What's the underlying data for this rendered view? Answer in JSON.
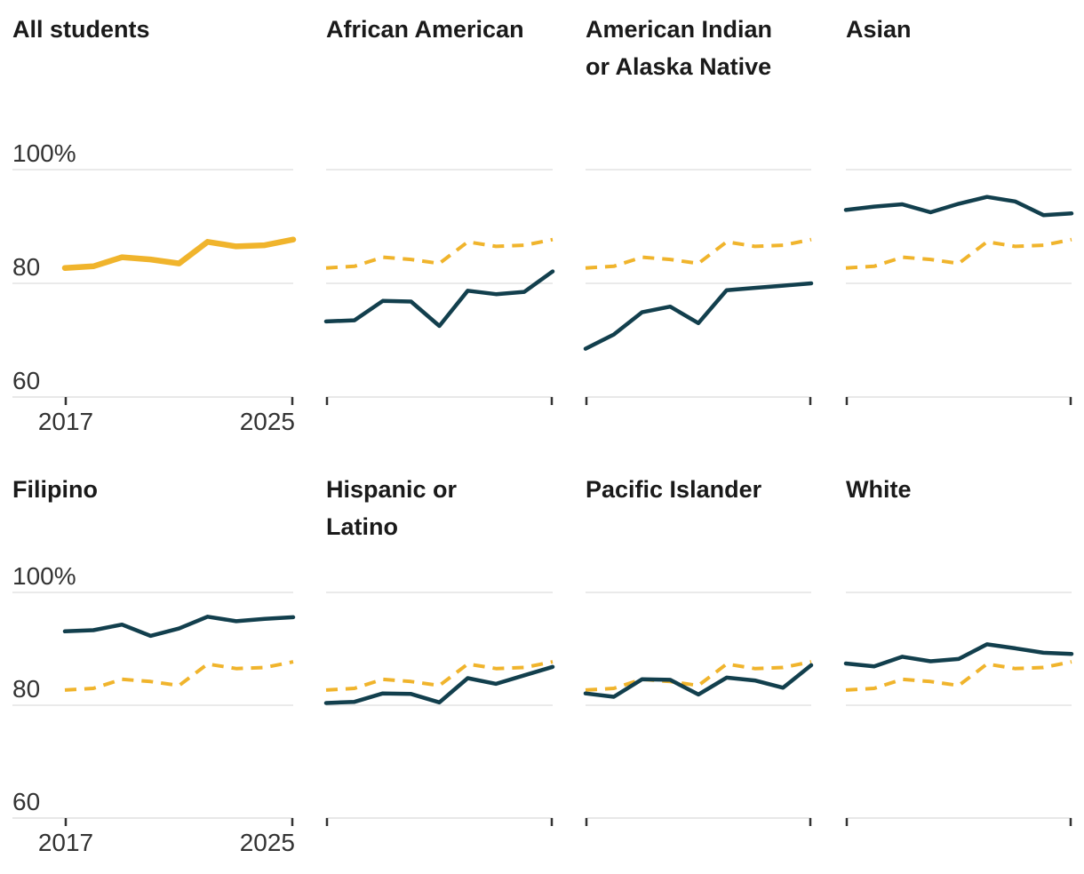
{
  "page": {
    "background": "#ffffff"
  },
  "colors": {
    "accent_yellow": "#F0B42C",
    "accent_teal": "#123F4D",
    "gridline": "#E4E4E4",
    "axis_line": "#E0E0E0",
    "tick_mark": "#333333",
    "title_text": "#1A1A1A",
    "axis_label_text": "#333333"
  },
  "chart_data": {
    "type": "line",
    "layout": "small-multiples (2 rows x 4 columns)",
    "x": [
      2017,
      2018,
      2019,
      2020,
      2021,
      2022,
      2023,
      2024,
      2025
    ],
    "x_tick_labels": [
      "2017",
      "2025"
    ],
    "y_axis": {
      "range": [
        60,
        100
      ],
      "ticks": [
        100,
        80,
        60
      ],
      "tick_labels": [
        "100%",
        "80",
        "60"
      ],
      "labels_shown_only_on_first_column": true
    },
    "grid": "horizontal gridlines at 100, 80 and baseline at 60",
    "reference_series": {
      "name": "All students",
      "style": "dashed",
      "color": "#F0B42C",
      "values": [
        82.7,
        83.0,
        84.6,
        84.2,
        83.5,
        87.3,
        86.5,
        86.7,
        87.7
      ]
    },
    "panels": [
      {
        "id": "all-students",
        "title": "All students",
        "title_lines": [
          "All students"
        ],
        "line_style": "solid-thick",
        "color": "#F0B42C",
        "show_reference": false,
        "values": [
          82.7,
          83.0,
          84.6,
          84.2,
          83.5,
          87.3,
          86.5,
          86.7,
          87.7
        ]
      },
      {
        "id": "african-american",
        "title": "African American",
        "title_lines": [
          "African American"
        ],
        "line_style": "solid",
        "color": "#123F4D",
        "show_reference": true,
        "values": [
          73.3,
          73.5,
          76.9,
          76.8,
          72.5,
          78.7,
          78.1,
          78.5,
          82.1
        ]
      },
      {
        "id": "american-indian-or-alaska-native",
        "title": "American Indian or Alaska Native",
        "title_lines": [
          "American Indian",
          "or Alaska Native"
        ],
        "line_style": "solid",
        "color": "#123F4D",
        "show_reference": true,
        "values": [
          68.5,
          71.0,
          74.9,
          75.9,
          73.0,
          78.8,
          79.2,
          79.6,
          80.0
        ]
      },
      {
        "id": "asian",
        "title": "Asian",
        "title_lines": [
          "Asian"
        ],
        "line_style": "solid",
        "color": "#123F4D",
        "show_reference": true,
        "values": [
          92.9,
          93.5,
          93.9,
          92.5,
          94.0,
          95.2,
          94.4,
          92.0,
          92.3
        ]
      },
      {
        "id": "filipino",
        "title": "Filipino",
        "title_lines": [
          "Filipino"
        ],
        "line_style": "solid",
        "color": "#123F4D",
        "show_reference": true,
        "values": [
          93.1,
          93.3,
          94.3,
          92.3,
          93.6,
          95.7,
          94.9,
          95.3,
          95.6
        ]
      },
      {
        "id": "hispanic-or-latino",
        "title": "Hispanic or Latino",
        "title_lines": [
          "Hispanic or",
          "Latino"
        ],
        "line_style": "solid",
        "color": "#123F4D",
        "show_reference": true,
        "values": [
          80.4,
          80.6,
          82.1,
          82.0,
          80.5,
          84.8,
          83.8,
          85.3,
          86.8
        ]
      },
      {
        "id": "pacific-islander",
        "title": "Pacific Islander",
        "title_lines": [
          "Pacific Islander"
        ],
        "line_style": "solid",
        "color": "#123F4D",
        "show_reference": true,
        "values": [
          82.1,
          81.5,
          84.6,
          84.5,
          81.9,
          84.9,
          84.4,
          83.1,
          87.1
        ]
      },
      {
        "id": "white",
        "title": "White",
        "title_lines": [
          "White"
        ],
        "line_style": "solid",
        "color": "#123F4D",
        "show_reference": true,
        "values": [
          87.4,
          86.9,
          88.6,
          87.8,
          88.2,
          90.8,
          90.1,
          89.3,
          89.1
        ]
      }
    ]
  }
}
